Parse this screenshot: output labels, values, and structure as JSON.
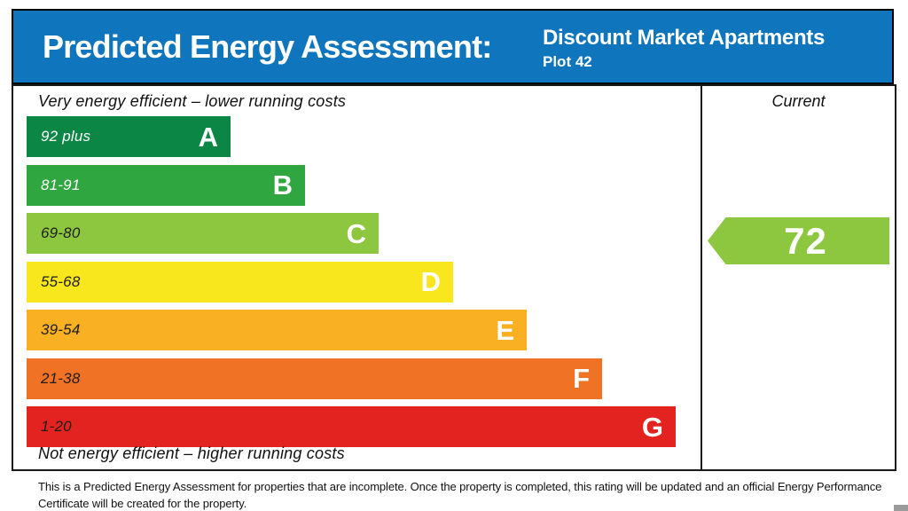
{
  "header": {
    "title": "Predicted Energy Assessment:",
    "property_name": "Discount Market Apartments",
    "property_plot": "Plot 42",
    "bg_color": "#0F75BC"
  },
  "chart": {
    "top_caption": "Very energy efficient – lower running costs",
    "bottom_caption": "Not energy efficient – higher running costs",
    "current_column_label": "Current",
    "bands": [
      {
        "letter": "A",
        "range": "92 plus",
        "color": "#0C8645"
      },
      {
        "letter": "B",
        "range": "81-91",
        "color": "#2FA63F"
      },
      {
        "letter": "C",
        "range": "69-80",
        "color": "#8DC63F"
      },
      {
        "letter": "D",
        "range": "55-68",
        "color": "#F8E71C"
      },
      {
        "letter": "E",
        "range": "39-54",
        "color": "#F9B022"
      },
      {
        "letter": "F",
        "range": "21-38",
        "color": "#EF7225"
      },
      {
        "letter": "G",
        "range": "1-20",
        "color": "#E32320"
      }
    ],
    "current": {
      "value": "72",
      "band": "C",
      "color": "#8DC63F"
    }
  },
  "footer": {
    "note": "This is a Predicted Energy Assessment for properties that are incomplete. Once the property is completed, this rating will be updated and an official Energy Performance Certificate will be created for the property."
  },
  "chart_data": {
    "type": "bar",
    "title": "Predicted Energy Assessment: Discount Market Apartments Plot 42",
    "categories": [
      "A",
      "B",
      "C",
      "D",
      "E",
      "F",
      "G"
    ],
    "band_score_ranges": [
      "92 plus",
      "81-91",
      "69-80",
      "55-68",
      "39-54",
      "21-38",
      "1-20"
    ],
    "band_colors": [
      "#0C8645",
      "#2FA63F",
      "#8DC63F",
      "#F8E71C",
      "#F9B022",
      "#EF7225",
      "#E32320"
    ],
    "bar_relative_lengths": [
      230,
      314,
      397,
      481,
      564,
      649,
      732
    ],
    "current_rating": 72,
    "current_band": "C",
    "column_label": "Current",
    "top_axis_caption": "Very energy efficient – lower running costs",
    "bottom_axis_caption": "Not energy efficient – higher running costs",
    "legend_position": "none",
    "grid": false
  }
}
